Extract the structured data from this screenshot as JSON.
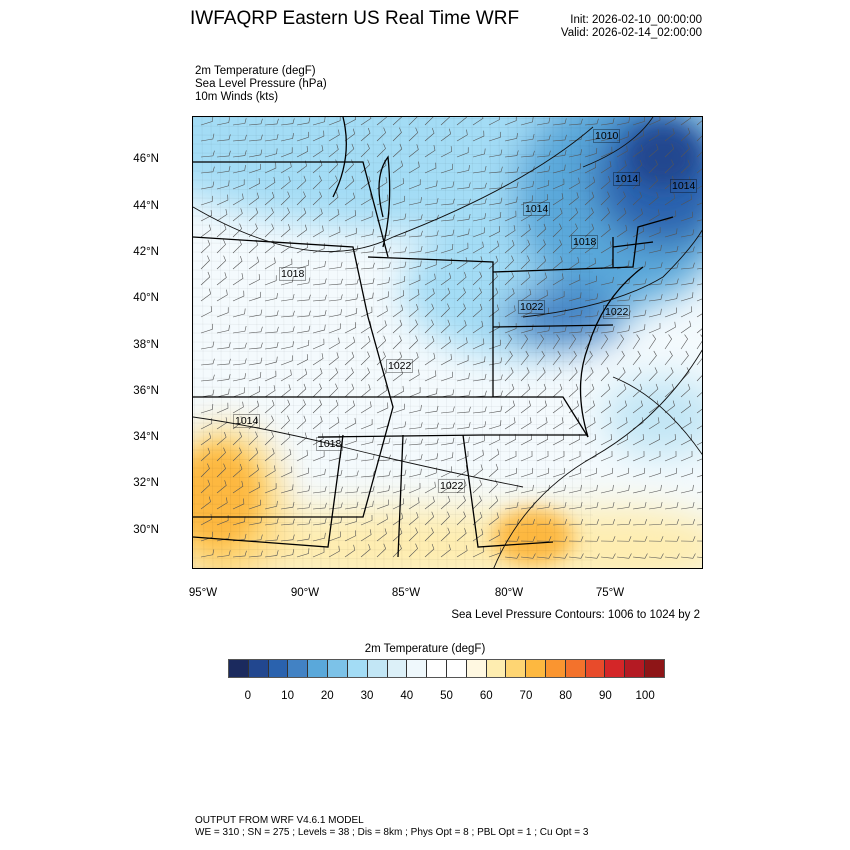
{
  "header": {
    "title": "IWFAQRP Eastern US Real Time WRF",
    "init": "Init: 2026-02-10_00:00:00",
    "valid": "Valid: 2026-02-14_02:00:00"
  },
  "fields": [
    "2m Temperature   (degF)",
    "Sea Level Pressure   (hPa)",
    "10m Winds   (kts)"
  ],
  "map": {
    "lat_labels": [
      "46°N",
      "44°N",
      "42°N",
      "40°N",
      "38°N",
      "36°N",
      "34°N",
      "32°N",
      "30°N"
    ],
    "lon_labels": [
      "95°W",
      "90°W",
      "85°W",
      "80°W",
      "75°W"
    ],
    "contour_labels": [
      "1010",
      "1014",
      "1014",
      "1014",
      "1018",
      "1018",
      "1022",
      "1022",
      "1022",
      "1014",
      "1018",
      "1022"
    ]
  },
  "contour_note": "Sea Level Pressure Contours: 1006 to 1024 by 2",
  "colorbar": {
    "title": "2m Temperature  (degF)",
    "labels": [
      "0",
      "10",
      "20",
      "30",
      "40",
      "50",
      "60",
      "70",
      "80",
      "90",
      "100"
    ],
    "colors": [
      "#1b2a5e",
      "#22478f",
      "#2a62ae",
      "#4282c4",
      "#5aa8da",
      "#7cc2e8",
      "#a3dcf5",
      "#c2e6f5",
      "#dcf0f8",
      "#eff8fc",
      "#ffffff",
      "#ffffff",
      "#fff8e1",
      "#feedb0",
      "#fed573",
      "#fdb840",
      "#fa9530",
      "#f3722c",
      "#e84b2b",
      "#d42628",
      "#b41a23",
      "#8e1517"
    ]
  },
  "footer": {
    "line1": "OUTPUT FROM WRF V4.6.1 MODEL",
    "line2": "WE = 310 ; SN = 275 ; Levels = 38 ; Dis = 8km ; Phys Opt = 8 ; PBL Opt = 1 ; Cu Opt = 3"
  }
}
